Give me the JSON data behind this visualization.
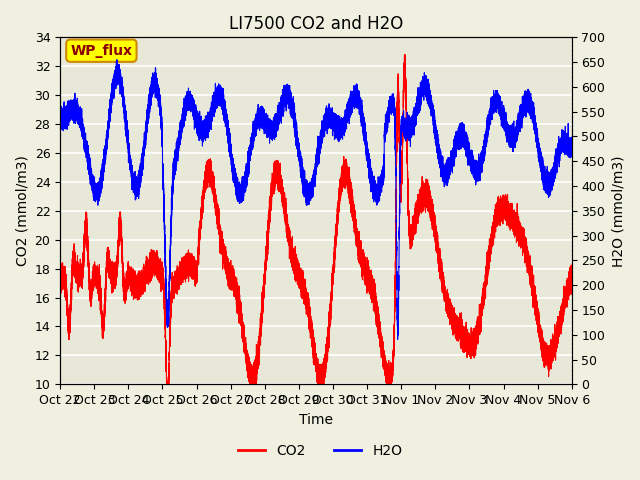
{
  "title": "LI7500 CO2 and H2O",
  "xlabel": "Time",
  "ylabel_left": "CO2 (mmol/m3)",
  "ylabel_right": "H2O (mmol/m3)",
  "co2_ylim": [
    10,
    34
  ],
  "h2o_ylim": [
    0,
    700
  ],
  "co2_yticks": [
    10,
    12,
    14,
    16,
    18,
    20,
    22,
    24,
    26,
    28,
    30,
    32,
    34
  ],
  "h2o_yticks": [
    0,
    50,
    100,
    150,
    200,
    250,
    300,
    350,
    400,
    450,
    500,
    550,
    600,
    650,
    700
  ],
  "xtick_labels": [
    "Oct 22",
    "Oct 23",
    "Oct 24",
    "Oct 25",
    "Oct 26",
    "Oct 27",
    "Oct 28",
    "Oct 29",
    "Oct 30",
    "Oct 31",
    "Nov 1",
    "Nov 2",
    "Nov 3",
    "Nov 4",
    "Nov 5",
    "Nov 6"
  ],
  "co2_color": "#ff0000",
  "h2o_color": "#0000ff",
  "bg_color": "#f0f0e0",
  "plot_bg_color": "#e8e8d8",
  "annotation_text": "WP_flux",
  "annotation_bg": "#ffff00",
  "annotation_border": "#cc8800",
  "grid_color": "#ffffff",
  "title_fontsize": 12,
  "label_fontsize": 10,
  "tick_fontsize": 9,
  "legend_fontsize": 10
}
